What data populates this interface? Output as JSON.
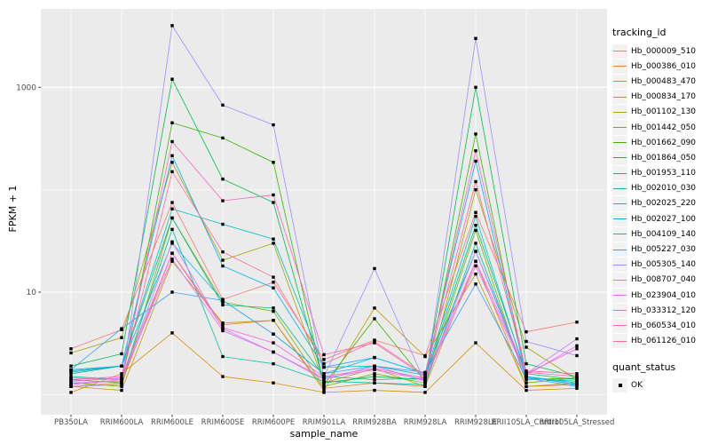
{
  "figure": {
    "background": "#FFFFFF",
    "panel_background": "#EBEBEB",
    "grid_color": "#FFFFFF",
    "tick_label_color": "#4D4D4D",
    "point_color": "#000000",
    "legend_key_background": "#F2F2F2"
  },
  "chart_data": {
    "type": "line",
    "title": "",
    "xlabel": "sample_name",
    "ylabel": "FPKM + 1",
    "y_scale": "log10",
    "ylim": [
      0.64,
      5800
    ],
    "y_ticks": [
      10,
      1000
    ],
    "y_tick_labels": [
      "10",
      "1000"
    ],
    "y_minor_gridlines": [
      1,
      100
    ],
    "grid": true,
    "legend_position": "right",
    "categories": [
      "PB350LA",
      "RRIM600LA",
      "RRIM600LE",
      "RRIM600SE",
      "RRIM600PE",
      "RRIM901LA",
      "RRIM928BA",
      "RRIM928LA",
      "RRIM928LE",
      "RRII105LA_Control",
      "RRII105LA_Stressed"
    ],
    "series": [
      {
        "name": "Hb_000009_510",
        "color": "#F8766D",
        "values": [
          2.8,
          4.3,
          75,
          8.5,
          12.5,
          2.2,
          3.4,
          2.4,
          60,
          4.1,
          5.1
        ]
      },
      {
        "name": "Hb_000386_010",
        "color": "#EA8331",
        "values": [
          1.2,
          1.3,
          24,
          4.8,
          5.3,
          1.15,
          1.3,
          1.2,
          20,
          1.2,
          1.25
        ]
      },
      {
        "name": "Hb_000483_470",
        "color": "#D89000",
        "values": [
          1.05,
          1.6,
          4.0,
          1.5,
          1.3,
          1.05,
          1.1,
          1.05,
          3.2,
          1.1,
          1.15
        ]
      },
      {
        "name": "Hb_000834_170",
        "color": "#C09B00",
        "values": [
          1.2,
          1.1,
          20,
          5.0,
          5.3,
          1.1,
          7.0,
          2.35,
          15,
          1.2,
          1.3
        ]
      },
      {
        "name": "Hb_001102_130",
        "color": "#A3A500",
        "values": [
          2.55,
          3.6,
          185,
          20.5,
          30,
          1.3,
          1.8,
          1.2,
          100,
          2.9,
          1.4
        ]
      },
      {
        "name": "Hb_001442_050",
        "color": "#7CAE00",
        "values": [
          1.3,
          1.2,
          53,
          8.0,
          6.5,
          1.2,
          1.6,
          1.3,
          40,
          1.3,
          1.45
        ]
      },
      {
        "name": "Hb_001662_090",
        "color": "#39B600",
        "values": [
          1.4,
          1.3,
          450,
          320,
          185,
          1.25,
          5.5,
          1.35,
          350,
          1.4,
          1.45
        ]
      },
      {
        "name": "Hb_001864_050",
        "color": "#00BB4E",
        "values": [
          1.9,
          2.5,
          1200,
          127,
          75,
          1.3,
          1.5,
          1.4,
          1000,
          2.0,
          1.5
        ]
      },
      {
        "name": "Hb_001953_110",
        "color": "#00BF7D",
        "values": [
          1.6,
          1.9,
          53,
          7.5,
          7.0,
          1.5,
          1.4,
          1.45,
          45,
          1.6,
          1.4
        ]
      },
      {
        "name": "Hb_002010_030",
        "color": "#00C1A3",
        "values": [
          1.5,
          1.4,
          41,
          2.35,
          2.0,
          1.35,
          1.3,
          1.25,
          30,
          1.45,
          1.35
        ]
      },
      {
        "name": "Hb_002025_220",
        "color": "#00BFC4",
        "values": [
          1.7,
          1.9,
          65,
          46,
          33,
          1.85,
          1.9,
          1.55,
          55,
          1.5,
          1.3
        ]
      },
      {
        "name": "Hb_002027_100",
        "color": "#00BADE",
        "values": [
          1.75,
          1.9,
          30,
          8.3,
          3.9,
          1.6,
          2.3,
          1.6,
          25,
          1.5,
          1.25
        ]
      },
      {
        "name": "Hb_004109_140",
        "color": "#00B0F6",
        "values": [
          1.66,
          1.9,
          215,
          18,
          11,
          1.85,
          2.3,
          1.6,
          190,
          1.5,
          1.25
        ]
      },
      {
        "name": "Hb_005227_030",
        "color": "#35A2FF",
        "values": [
          1.75,
          4.4,
          10,
          8.3,
          3.9,
          1.6,
          1.9,
          1.65,
          12,
          1.45,
          1.2
        ]
      },
      {
        "name": "Hb_005305_140",
        "color": "#9590FF",
        "values": [
          1.2,
          1.25,
          4000,
          670,
          430,
          1.5,
          17,
          1.3,
          3000,
          3.3,
          2.4
        ]
      },
      {
        "name": "Hb_008707_040",
        "color": "#C77CFF",
        "values": [
          1.3,
          1.35,
          31,
          4.4,
          2.6,
          1.4,
          1.9,
          1.35,
          25,
          1.6,
          3.5
        ]
      },
      {
        "name": "Hb_023904_010",
        "color": "#E76BF3",
        "values": [
          1.25,
          1.4,
          21,
          4.2,
          2.6,
          1.45,
          1.75,
          1.4,
          18,
          1.55,
          3.0
        ]
      },
      {
        "name": "Hb_033312_120",
        "color": "#FA62DB",
        "values": [
          1.35,
          1.45,
          24,
          4.5,
          3.2,
          1.5,
          1.8,
          1.45,
          20,
          1.6,
          2.8
        ]
      },
      {
        "name": "Hb_060534_010",
        "color": "#FF62BC",
        "values": [
          1.4,
          1.5,
          295,
          78,
          89,
          2.45,
          3.2,
          1.5,
          240,
          1.65,
          1.5
        ]
      },
      {
        "name": "Hb_061126_010",
        "color": "#FF6A98",
        "values": [
          1.45,
          1.4,
          150,
          24.7,
          14,
          2.0,
          3.3,
          1.55,
          120,
          1.7,
          1.6
        ]
      }
    ]
  },
  "legend": {
    "tracking_title": "tracking_id",
    "quant_title": "quant_status",
    "quant_items": [
      {
        "label": "OK"
      }
    ]
  }
}
